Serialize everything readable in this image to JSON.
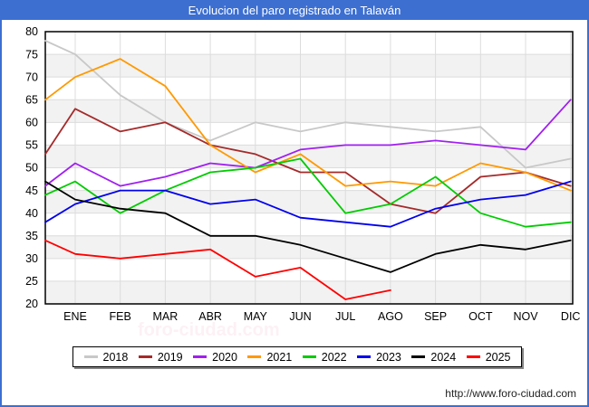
{
  "title": {
    "text": "Evolucion del paro registrado en Talaván"
  },
  "footer": {
    "url": "http://www.foro-ciudad.com"
  },
  "watermark_text": "foro-ciudad.com",
  "colors": {
    "frame_blue": "#3d6fd1",
    "band_fill": "#f2f2f2",
    "gridline": "#dcdcdc",
    "plot_border": "#000000"
  },
  "legend": {
    "entries": [
      {
        "label": "2018",
        "color": "#c8c8c8"
      },
      {
        "label": "2019",
        "color": "#a52a2a"
      },
      {
        "label": "2020",
        "color": "#a020f0"
      },
      {
        "label": "2021",
        "color": "#ff9900"
      },
      {
        "label": "2022",
        "color": "#00cc00"
      },
      {
        "label": "2023",
        "color": "#0000ee"
      },
      {
        "label": "2024",
        "color": "#000000"
      },
      {
        "label": "2025",
        "color": "#ff0000"
      }
    ]
  },
  "chart_data": {
    "type": "line",
    "title": "Evolucion del paro registrado en Talaván",
    "xlabel": "",
    "ylabel": "",
    "ylim": [
      20,
      80
    ],
    "y_ticks": [
      80,
      75,
      70,
      65,
      60,
      55,
      50,
      45,
      40,
      35,
      30,
      25,
      20
    ],
    "grid": true,
    "shaded_bands_every_5_units": true,
    "legend_position": "bottom",
    "categories": [
      "ENE",
      "FEB",
      "MAR",
      "ABR",
      "MAY",
      "JUN",
      "JUL",
      "AGO",
      "SEP",
      "OCT",
      "NOV",
      "DIC"
    ],
    "note_start_point": "each series has an extra point at the plot left edge (value just before ENE)",
    "series": [
      {
        "name": "2018",
        "color": "#c8c8c8",
        "start": 78,
        "values": [
          75,
          66,
          60,
          56,
          60,
          58,
          60,
          59,
          58,
          59,
          50,
          52
        ]
      },
      {
        "name": "2019",
        "color": "#a52a2a",
        "start": 53,
        "values": [
          63,
          58,
          60,
          55,
          53,
          49,
          49,
          42,
          40,
          48,
          49,
          46
        ]
      },
      {
        "name": "2020",
        "color": "#a020f0",
        "start": 46,
        "values": [
          51,
          46,
          48,
          51,
          50,
          54,
          55,
          55,
          56,
          55,
          54,
          65
        ]
      },
      {
        "name": "2021",
        "color": "#ff9900",
        "start": 65,
        "values": [
          70,
          74,
          68,
          55,
          49,
          53,
          46,
          47,
          46,
          51,
          49,
          45
        ]
      },
      {
        "name": "2022",
        "color": "#00cc00",
        "start": 44,
        "values": [
          47,
          40,
          45,
          49,
          50,
          52,
          40,
          42,
          48,
          40,
          37,
          38
        ]
      },
      {
        "name": "2023",
        "color": "#0000ee",
        "start": 38,
        "values": [
          42,
          45,
          45,
          42,
          43,
          39,
          38,
          37,
          41,
          43,
          44,
          47
        ]
      },
      {
        "name": "2024",
        "color": "#000000",
        "start": 47,
        "values": [
          43,
          41,
          40,
          35,
          35,
          33,
          30,
          27,
          31,
          33,
          32,
          34
        ]
      },
      {
        "name": "2025",
        "color": "#ff0000",
        "start": 34,
        "values": [
          31,
          30,
          31,
          32,
          26,
          28,
          21,
          23
        ]
      }
    ]
  }
}
